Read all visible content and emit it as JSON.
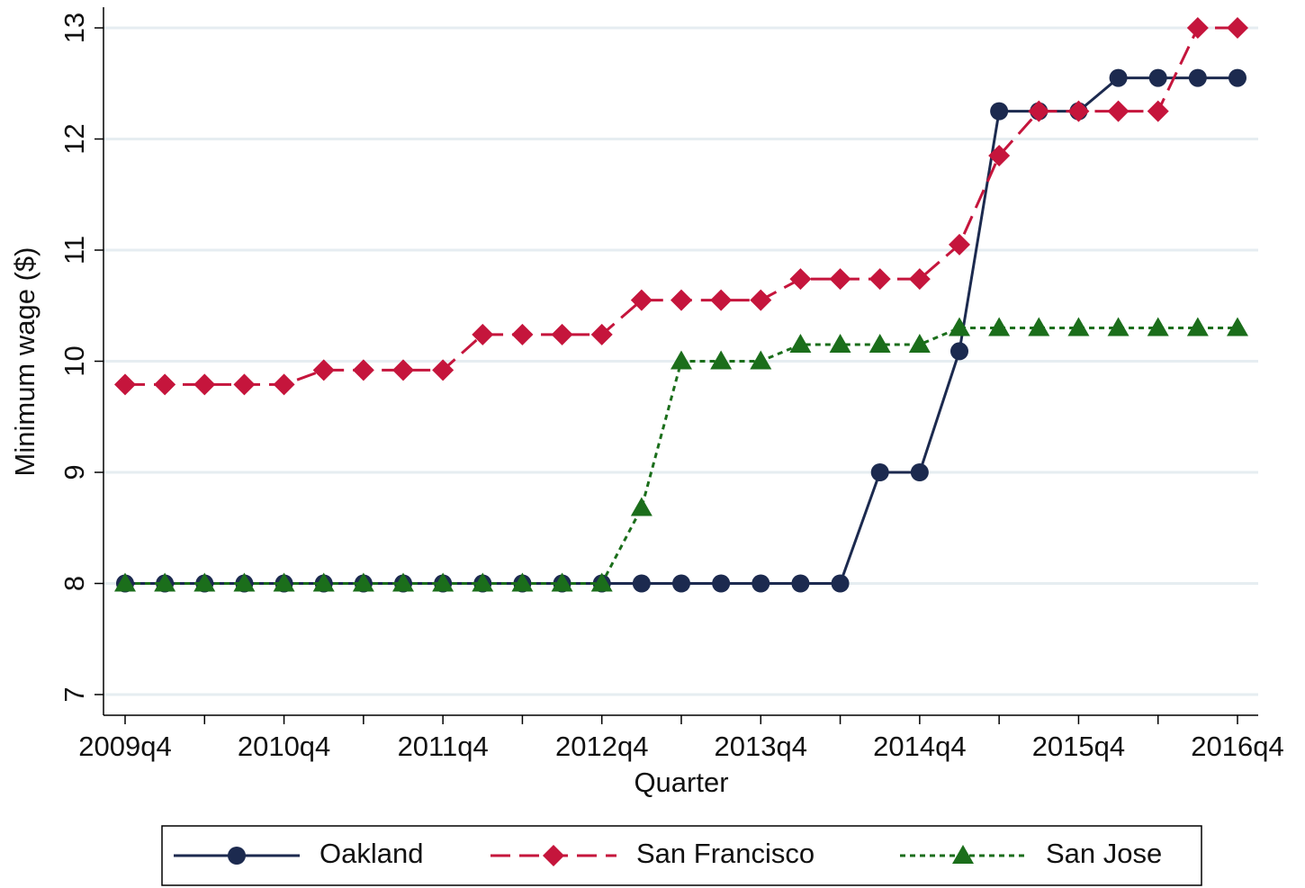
{
  "chart_data": {
    "type": "line",
    "x_label": "Quarter",
    "y_label": "Minimum wage ($)",
    "categories": [
      "2009q4",
      null,
      null,
      null,
      "2010q4",
      null,
      null,
      null,
      "2011q4",
      null,
      null,
      null,
      "2012q4",
      null,
      null,
      null,
      "2013q4",
      null,
      null,
      null,
      "2014q4",
      null,
      null,
      null,
      "2015q4",
      null,
      null,
      null,
      "2016q4"
    ],
    "ylim": [
      7,
      13
    ],
    "yticks": [
      7,
      8,
      9,
      10,
      11,
      12,
      13
    ],
    "grid": true,
    "series": [
      {
        "name": "Oakland",
        "color": "#1c2a4f",
        "marker": "circle",
        "dash": "solid",
        "values": [
          8,
          8,
          8,
          8,
          8,
          8,
          8,
          8,
          8,
          8,
          8,
          8,
          8,
          8,
          8,
          8,
          8,
          8,
          8,
          9,
          9,
          10.09,
          12.25,
          12.25,
          12.25,
          12.55,
          12.55,
          12.55,
          12.55
        ]
      },
      {
        "name": "San Francisco",
        "color": "#c5153c",
        "marker": "diamond",
        "dash": "dashed",
        "values": [
          9.79,
          9.79,
          9.79,
          9.79,
          9.79,
          9.92,
          9.92,
          9.92,
          9.92,
          10.24,
          10.24,
          10.24,
          10.24,
          10.55,
          10.55,
          10.55,
          10.55,
          10.74,
          10.74,
          10.74,
          10.74,
          11.05,
          11.85,
          12.25,
          12.25,
          12.25,
          12.25,
          13,
          13
        ]
      },
      {
        "name": "San Jose",
        "color": "#1b6e1b",
        "marker": "triangle",
        "dash": "dotted",
        "values": [
          8,
          8,
          8,
          8,
          8,
          8,
          8,
          8,
          8,
          8,
          8,
          8,
          8,
          8.68,
          10,
          10,
          10,
          10.15,
          10.15,
          10.15,
          10.15,
          10.3,
          10.3,
          10.3,
          10.3,
          10.3,
          10.3,
          10.3,
          10.3
        ]
      }
    ],
    "legend": "bottom"
  }
}
